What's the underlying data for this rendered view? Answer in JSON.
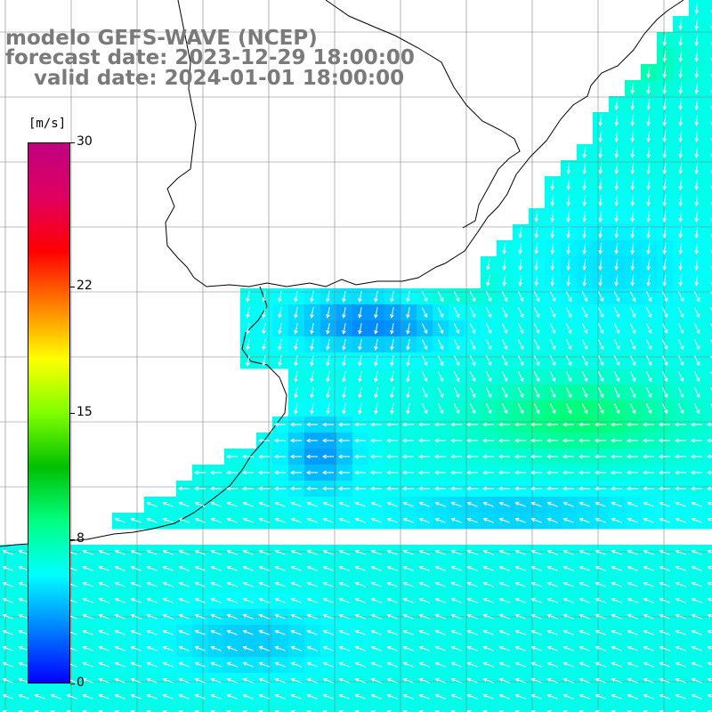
{
  "titles": {
    "model": "modelo GEFS-WAVE (NCEP)",
    "forecast": "forecast date: 2023-12-29 18:00:00",
    "valid": "    valid date: 2024-01-01 18:00:00"
  },
  "colorbar": {
    "unit": "[m/s]",
    "ticks": [
      "30",
      "22",
      "15",
      "8",
      "0"
    ],
    "tick_values": [
      30,
      22,
      15,
      8,
      0
    ],
    "range": [
      0,
      30
    ],
    "colors": [
      "#0000ff",
      "#0080ff",
      "#00ffff",
      "#00ff80",
      "#00c000",
      "#80ff00",
      "#ffff00",
      "#ff8000",
      "#ff0000",
      "#e00060",
      "#c00080"
    ]
  },
  "map": {
    "variable": "wind speed and direction",
    "background": "#ffffff",
    "land_color": "#ffffff",
    "coast_color": "#000000",
    "grid_color": "#808080",
    "arrow_color": "#ffffff"
  }
}
